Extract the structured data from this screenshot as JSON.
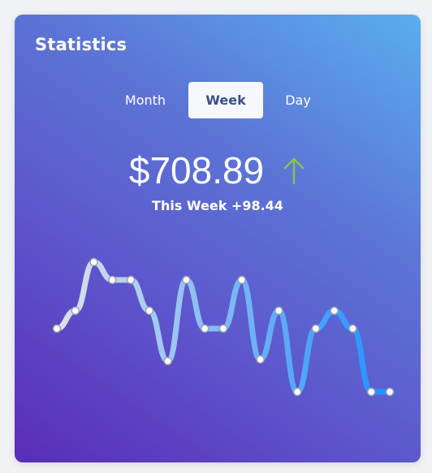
{
  "card": {
    "title": "Statistics"
  },
  "tabs": [
    {
      "label": "Month",
      "active": false
    },
    {
      "label": "Week",
      "active": true
    },
    {
      "label": "Day",
      "active": false
    }
  ],
  "summary": {
    "amount": "$708.89",
    "trend": "up",
    "trend_color": "#8bc34a",
    "caption": "This Week +98.44"
  },
  "colors": {
    "gradient_start": "#5a2db7",
    "gradient_end": "#5aaef0",
    "line_start": "#dfe2ea",
    "line_end": "#1e90ff",
    "point_fill": "#ffffff",
    "point_stroke": "#9aa0b0"
  },
  "chart_data": {
    "type": "line",
    "title": "",
    "xlabel": "",
    "ylabel": "",
    "ylim": [
      0,
      10
    ],
    "x": [
      1,
      2,
      3,
      4,
      5,
      6,
      7,
      8,
      9,
      10,
      11,
      12,
      13,
      14,
      15,
      16,
      17,
      18,
      19
    ],
    "series": [
      {
        "name": "Week",
        "values": [
          4.9,
          6.0,
          9.0,
          7.9,
          7.9,
          6.0,
          2.9,
          7.9,
          4.9,
          4.9,
          7.9,
          3.0,
          6.0,
          1.0,
          4.9,
          6.0,
          4.9,
          1.0,
          1.0
        ]
      }
    ]
  }
}
